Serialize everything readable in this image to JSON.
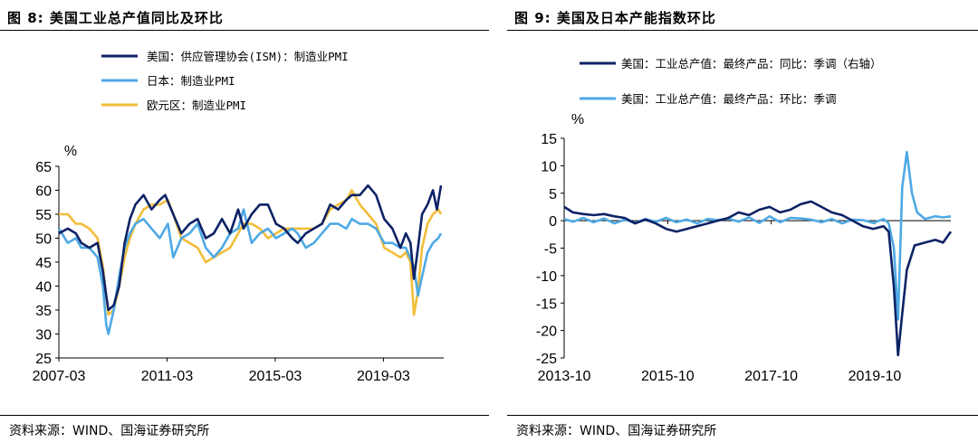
{
  "charts": [
    {
      "title": "图 8:  美国工业总产值同比及环比",
      "source": "资料来源：WIND、国海证券研究所",
      "chart_data": {
        "type": "line",
        "unit": "%",
        "ylim": [
          25,
          65
        ],
        "yticks": [
          25,
          30,
          35,
          40,
          45,
          50,
          55,
          60,
          65
        ],
        "xticks": [
          "2007-03",
          "2011-03",
          "2015-03",
          "2019-03"
        ],
        "xrange": [
          2007.17,
          2021.4
        ],
        "series": [
          {
            "name": "美国：供应管理协会(ISM)：制造业PMI",
            "color": "#0d2266",
            "x": [
              2007.17,
              2007.5,
              2007.8,
              2008.0,
              2008.3,
              2008.6,
              2008.8,
              2008.92,
              2009.0,
              2009.2,
              2009.4,
              2009.6,
              2009.8,
              2010.0,
              2010.3,
              2010.6,
              2010.9,
              2011.1,
              2011.4,
              2011.7,
              2012.0,
              2012.3,
              2012.6,
              2012.9,
              2013.2,
              2013.5,
              2013.8,
              2014.0,
              2014.3,
              2014.6,
              2014.9,
              2015.2,
              2015.5,
              2015.8,
              2016.0,
              2016.3,
              2016.6,
              2016.9,
              2017.2,
              2017.5,
              2017.8,
              2018.0,
              2018.3,
              2018.6,
              2018.9,
              2019.2,
              2019.5,
              2019.8,
              2020.0,
              2020.17,
              2020.3,
              2020.45,
              2020.6,
              2020.8,
              2021.0,
              2021.15,
              2021.3
            ],
            "y": [
              51,
              52,
              51,
              49,
              48,
              49,
              43,
              38,
              35,
              36,
              40,
              49,
              54,
              57,
              59,
              56,
              58,
              59,
              55,
              51,
              53,
              54,
              50,
              51,
              54,
              51,
              56,
              52,
              55,
              57,
              57,
              53,
              52,
              50,
              49,
              51,
              52,
              53,
              57,
              56,
              58,
              59,
              59,
              61,
              59,
              54,
              52,
              48,
              51,
              49,
              41.5,
              48,
              55,
              57,
              60,
              56,
              61
            ]
          },
          {
            "name": "日本：制造业PMI",
            "color": "#4ea9e4",
            "x": [
              2007.17,
              2007.5,
              2007.8,
              2008.0,
              2008.3,
              2008.6,
              2008.8,
              2008.92,
              2009.0,
              2009.2,
              2009.4,
              2009.6,
              2009.8,
              2010.0,
              2010.3,
              2010.6,
              2010.9,
              2011.2,
              2011.4,
              2011.7,
              2012.0,
              2012.3,
              2012.6,
              2012.9,
              2013.2,
              2013.5,
              2013.8,
              2014.0,
              2014.3,
              2014.6,
              2014.9,
              2015.2,
              2015.5,
              2015.8,
              2016.0,
              2016.3,
              2016.6,
              2016.9,
              2017.2,
              2017.5,
              2017.8,
              2018.0,
              2018.3,
              2018.6,
              2018.9,
              2019.2,
              2019.5,
              2019.8,
              2020.0,
              2020.3,
              2020.45,
              2020.6,
              2020.8,
              2021.0,
              2021.2,
              2021.3
            ],
            "y": [
              52,
              49,
              50,
              48,
              48,
              46,
              40,
              32,
              30,
              35,
              42,
              48,
              51,
              53,
              54,
              52,
              50,
              53,
              46,
              50,
              51,
              53,
              48,
              46,
              48,
              51,
              52,
              56,
              49,
              51,
              52,
              50,
              51,
              52,
              51,
              48,
              49,
              51,
              53,
              53,
              52,
              54,
              53,
              53,
              52,
              49,
              49,
              48,
              48,
              44,
              38,
              42,
              47,
              49,
              50,
              51
            ]
          },
          {
            "name": "欧元区：制造业PMI",
            "color": "#f2be3a",
            "x": [
              2007.17,
              2007.5,
              2007.8,
              2008.0,
              2008.3,
              2008.6,
              2008.8,
              2009.0,
              2009.2,
              2009.4,
              2009.6,
              2009.8,
              2010.0,
              2010.3,
              2010.6,
              2010.9,
              2011.2,
              2011.4,
              2011.7,
              2012.0,
              2012.3,
              2012.6,
              2012.9,
              2013.2,
              2013.5,
              2013.8,
              2014.0,
              2014.3,
              2014.6,
              2014.9,
              2015.2,
              2015.5,
              2015.8,
              2016.0,
              2016.3,
              2016.6,
              2016.9,
              2017.2,
              2017.5,
              2017.8,
              2018.0,
              2018.3,
              2018.6,
              2018.9,
              2019.2,
              2019.5,
              2019.8,
              2020.0,
              2020.17,
              2020.3,
              2020.45,
              2020.6,
              2020.8,
              2021.0,
              2021.2,
              2021.3
            ],
            "y": [
              55,
              55,
              53,
              53,
              52,
              50,
              44,
              34,
              35,
              40,
              46,
              50,
              53,
              56,
              57,
              57,
              58,
              55,
              50,
              49,
              48,
              45,
              46,
              47,
              48,
              51,
              53,
              53,
              52,
              50,
              51,
              52,
              52,
              52,
              52,
              52,
              53,
              56,
              57,
              58,
              60,
              57,
              55,
              53,
              48,
              47,
              46,
              47,
              45,
              34,
              39,
              48,
              53,
              55,
              56,
              55
            ]
          }
        ]
      }
    },
    {
      "title": "图 9:  美国及日本产能指数环比",
      "source": "资料来源：WIND、国海证券研究所",
      "chart_data": {
        "type": "line",
        "unit": "%",
        "ylim": [
          -25,
          15
        ],
        "yticks": [
          -25,
          -20,
          -15,
          -10,
          -5,
          0,
          5,
          10,
          15
        ],
        "xticks": [
          "2013-10",
          "2015-10",
          "2017-10",
          "2019-10"
        ],
        "xrange": [
          2013.83,
          2021.3
        ],
        "series": [
          {
            "name": "美国：工业总产值：最终产品：同比：季调（右轴）",
            "color": "#0d2266",
            "x": [
              2013.83,
              2014.0,
              2014.2,
              2014.4,
              2014.6,
              2014.8,
              2015.0,
              2015.2,
              2015.4,
              2015.6,
              2015.8,
              2016.0,
              2016.2,
              2016.4,
              2016.6,
              2016.8,
              2017.0,
              2017.2,
              2017.4,
              2017.6,
              2017.8,
              2018.0,
              2018.2,
              2018.4,
              2018.6,
              2018.8,
              2019.0,
              2019.2,
              2019.4,
              2019.6,
              2019.8,
              2020.0,
              2020.1,
              2020.2,
              2020.28,
              2020.36,
              2020.45,
              2020.6,
              2020.8,
              2021.0,
              2021.15,
              2021.3
            ],
            "y": [
              2.5,
              1.5,
              1.2,
              1.0,
              1.2,
              0.8,
              0.5,
              -0.5,
              0.2,
              -0.5,
              -1.5,
              -2,
              -1.5,
              -1,
              -0.5,
              0,
              0.5,
              1.5,
              1,
              2,
              2.5,
              1.5,
              2,
              3,
              3.5,
              2.5,
              1.5,
              1,
              0,
              -1,
              -1.5,
              -1,
              -2,
              -12,
              -24.5,
              -17,
              -9,
              -4.5,
              -4,
              -3.5,
              -4,
              -2
            ]
          },
          {
            "name": "美国：工业总产值：最终产品：环比：季调",
            "color": "#4ea9e4",
            "x": [
              2013.83,
              2014.0,
              2014.2,
              2014.4,
              2014.6,
              2014.8,
              2015.0,
              2015.2,
              2015.4,
              2015.6,
              2015.8,
              2016.0,
              2016.2,
              2016.4,
              2016.6,
              2016.8,
              2017.0,
              2017.2,
              2017.4,
              2017.6,
              2017.8,
              2018.0,
              2018.2,
              2018.4,
              2018.6,
              2018.8,
              2019.0,
              2019.2,
              2019.4,
              2019.6,
              2019.8,
              2020.0,
              2020.1,
              2020.2,
              2020.28,
              2020.36,
              2020.45,
              2020.55,
              2020.65,
              2020.8,
              2021.0,
              2021.15,
              2021.3
            ],
            "y": [
              0.3,
              -0.2,
              0.5,
              -0.3,
              0.4,
              -0.5,
              0.2,
              -0.4,
              0.3,
              -0.2,
              0.5,
              -0.3,
              0.2,
              -0.5,
              0.3,
              0.1,
              0.4,
              -0.2,
              0.6,
              -0.4,
              0.8,
              -0.3,
              0.5,
              0.4,
              0.2,
              -0.3,
              0.3,
              -0.5,
              0.2,
              0.1,
              -0.4,
              0.3,
              -0.5,
              -5,
              -18,
              6,
              12.5,
              5,
              1.5,
              0.3,
              0.8,
              0.6,
              0.8
            ]
          }
        ]
      }
    }
  ]
}
